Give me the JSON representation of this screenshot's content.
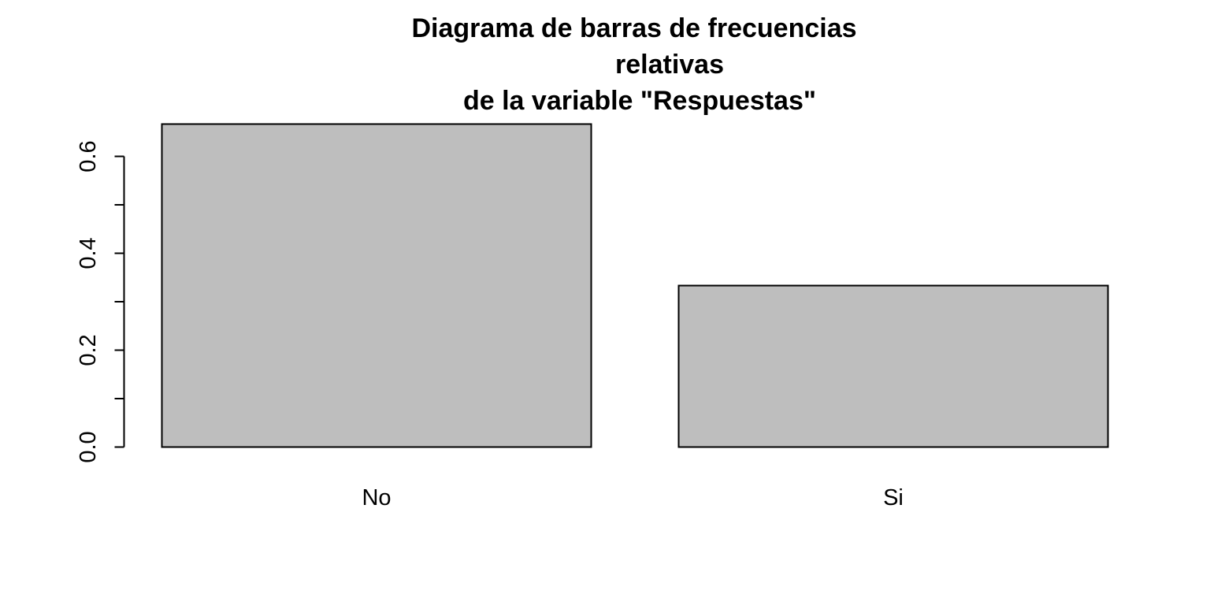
{
  "chart_data": {
    "type": "bar",
    "title_lines": [
      "Diagrama de barras de frecuencias",
      "relativas",
      "de la variable \"Respuestas\""
    ],
    "categories": [
      "No",
      "Si"
    ],
    "values": [
      0.6667,
      0.3333
    ],
    "yticks": [
      "0.0",
      "0.2",
      "0.4",
      "0.6"
    ],
    "ytick_values": [
      0.0,
      0.2,
      0.4,
      0.6
    ],
    "ylim": [
      0.0,
      0.6667
    ],
    "xlabel": "",
    "ylabel": "",
    "grid": false,
    "bar_color": "#bebebe",
    "bar_border_color": "#000000"
  }
}
